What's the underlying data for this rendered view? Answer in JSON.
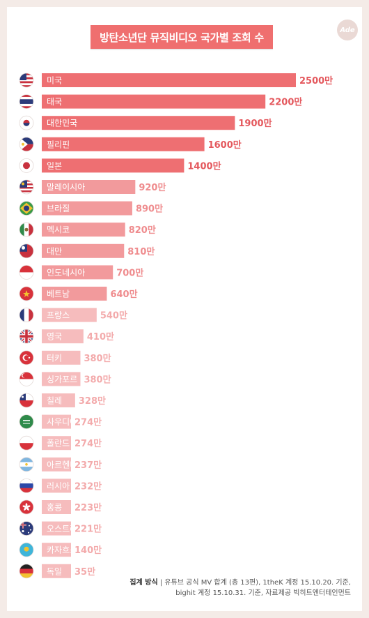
{
  "chart_data": {
    "type": "bar",
    "orientation": "horizontal",
    "title": "방탄소년단 뮤직비디오 국가별 조회 수",
    "categories": [
      "미국",
      "태국",
      "대한민국",
      "필리핀",
      "일본",
      "말레이시아",
      "브라질",
      "멕시코",
      "대만",
      "인도네시아",
      "베트남",
      "프랑스",
      "영국",
      "터키",
      "싱가포르",
      "칠레",
      "사우디아라비아",
      "폴란드",
      "아르헨티나",
      "러시아",
      "홍콩",
      "오스트레일리아",
      "카자흐스탄",
      "독일"
    ],
    "values": [
      2500,
      2200,
      1900,
      1600,
      1400,
      920,
      890,
      820,
      810,
      700,
      640,
      540,
      410,
      380,
      380,
      328,
      274,
      274,
      237,
      232,
      223,
      221,
      140,
      35
    ],
    "value_labels": [
      "2500만",
      "2200만",
      "1900만",
      "1600만",
      "1400만",
      "920만",
      "890만",
      "820만",
      "810만",
      "700만",
      "640만",
      "540만",
      "410만",
      "380만",
      "380만",
      "328만",
      "274만",
      "274만",
      "237만",
      "232만",
      "223만",
      "221만",
      "140만",
      "35만"
    ],
    "flags": [
      "us-flag-icon",
      "thailand-flag-icon",
      "korea-flag-icon",
      "philippines-flag-icon",
      "japan-flag-icon",
      "malaysia-flag-icon",
      "brazil-flag-icon",
      "mexico-flag-icon",
      "taiwan-flag-icon",
      "indonesia-flag-icon",
      "vietnam-flag-icon",
      "france-flag-icon",
      "uk-flag-icon",
      "turkey-flag-icon",
      "singapore-flag-icon",
      "chile-flag-icon",
      "saudi-arabia-flag-icon",
      "poland-flag-icon",
      "argentina-flag-icon",
      "russia-flag-icon",
      "hong-kong-flag-icon",
      "australia-flag-icon",
      "kazakhstan-flag-icon",
      "germany-flag-icon"
    ],
    "colors": {
      "dark_bar": "#ee6f72",
      "mid_bar": "#f29a9c",
      "light_bar": "#f6bcbd",
      "dark_text": "#e4585d",
      "mid_text": "#ef8c8e",
      "light_text": "#f3aaab"
    }
  },
  "header": {
    "logo_text": "Ade"
  },
  "footnote": {
    "label": "집계 방식",
    "line1": " | 유튜브 공식 MV 합계 (총 13편), 1theK 계정 15.10.20. 기준,",
    "line2": "bighit 계정 15.10.31. 기준, 자료제공 빅히트엔터테인먼트"
  }
}
